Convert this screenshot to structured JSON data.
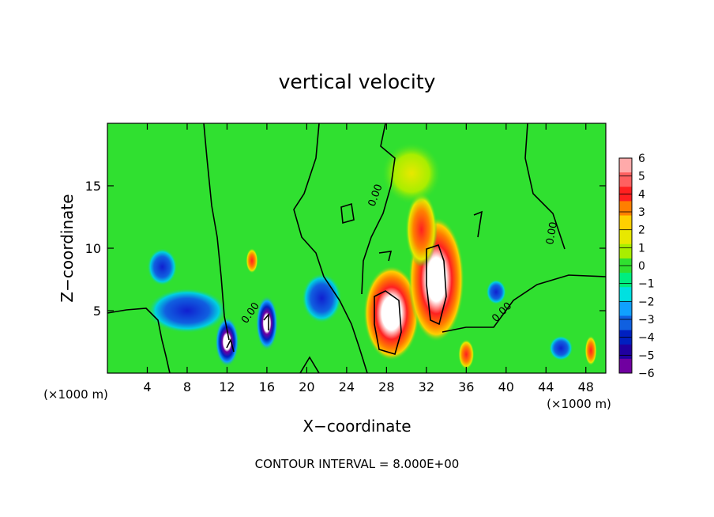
{
  "chart_data": {
    "type": "heatmap",
    "title": "vertical velocity",
    "xlabel": "X−coordinate",
    "ylabel": "Z−coordinate",
    "x_units": "(×1000 m)",
    "y_units": "(×1000 m)",
    "footer": "CONTOUR INTERVAL = 8.000E+00",
    "xlim": [
      0,
      50
    ],
    "ylim": [
      0,
      20
    ],
    "x_ticks": [
      "4",
      "8",
      "12",
      "16",
      "20",
      "24",
      "28",
      "32",
      "36",
      "40",
      "44",
      "48"
    ],
    "y_ticks": [
      "5",
      "10",
      "15"
    ],
    "colorbar": {
      "range": [
        -6,
        6
      ],
      "labels": [
        "6",
        "5",
        "4",
        "3",
        "2",
        "1",
        "0",
        "−1",
        "−2",
        "−3",
        "−4",
        "−5",
        "−6"
      ],
      "colors": [
        "#ffaaaa",
        "#ff6060",
        "#ff2020",
        "#ff7f00",
        "#ffd000",
        "#e8e800",
        "#a8ee00",
        "#30e030",
        "#00ee80",
        "#00e0e0",
        "#10a0ff",
        "#1060e0",
        "#0020c0",
        "#2000a0",
        "#7000a0"
      ]
    },
    "features": [
      {
        "x": 28.5,
        "z": 4.8,
        "value": 12,
        "rx": 2.8,
        "rz": 3.8
      },
      {
        "x": 33.0,
        "z": 7.5,
        "value": 12,
        "rx": 2.8,
        "rz": 5.0
      },
      {
        "x": 31.5,
        "z": 11.5,
        "value": 6,
        "rx": 1.6,
        "rz": 3.0
      },
      {
        "x": 30.5,
        "z": 16.0,
        "value": 2,
        "rx": 3.0,
        "rz": 2.5
      },
      {
        "x": 12.0,
        "z": 2.5,
        "value": -7,
        "rx": 1.2,
        "rz": 2.0
      },
      {
        "x": 16.0,
        "z": 4.0,
        "value": -7,
        "rx": 1.1,
        "rz": 2.2
      },
      {
        "x": 21.5,
        "z": 6.0,
        "value": -5,
        "rx": 2.0,
        "rz": 2.0
      },
      {
        "x": 8.0,
        "z": 5.0,
        "value": -5,
        "rx": 4.0,
        "rz": 1.8
      },
      {
        "x": 5.5,
        "z": 8.5,
        "value": -4,
        "rx": 1.5,
        "rz": 1.5
      },
      {
        "x": 14.5,
        "z": 9.0,
        "value": 4,
        "rx": 0.6,
        "rz": 1.0
      },
      {
        "x": 45.5,
        "z": 2.0,
        "value": -4,
        "rx": 1.2,
        "rz": 1.0
      },
      {
        "x": 48.5,
        "z": 1.8,
        "value": 4,
        "rx": 0.6,
        "rz": 1.2
      },
      {
        "x": 36.0,
        "z": 1.5,
        "value": 4,
        "rx": 0.8,
        "rz": 1.2
      },
      {
        "x": 39.0,
        "z": 6.5,
        "value": -3,
        "rx": 1.0,
        "rz": 1.0
      }
    ]
  }
}
